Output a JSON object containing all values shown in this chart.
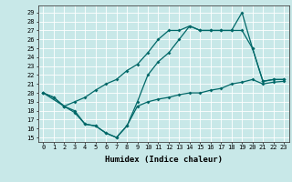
{
  "xlabel": "Humidex (Indice chaleur)",
  "bg_color": "#c8e8e8",
  "line_color": "#006868",
  "xlim": [
    -0.5,
    23.5
  ],
  "ylim": [
    14.5,
    29.8
  ],
  "xticks": [
    0,
    1,
    2,
    3,
    4,
    5,
    6,
    7,
    8,
    9,
    10,
    11,
    12,
    13,
    14,
    15,
    16,
    17,
    18,
    19,
    20,
    21,
    22,
    23
  ],
  "yticks": [
    15,
    16,
    17,
    18,
    19,
    20,
    21,
    22,
    23,
    24,
    25,
    26,
    27,
    28,
    29
  ],
  "line_bottom_x": [
    0,
    1,
    2,
    3,
    4,
    5,
    6,
    7,
    8,
    9,
    10,
    11,
    12,
    13,
    14,
    15,
    16,
    17,
    18,
    19,
    20,
    21,
    22,
    23
  ],
  "line_bottom_y": [
    20.0,
    19.5,
    18.5,
    17.8,
    16.5,
    16.3,
    15.5,
    15.0,
    16.3,
    18.5,
    19.0,
    19.3,
    19.5,
    19.8,
    20.0,
    20.0,
    20.3,
    20.5,
    21.0,
    21.2,
    21.5,
    21.0,
    21.2,
    21.3
  ],
  "line_diag_x": [
    0,
    1,
    2,
    3,
    4,
    5,
    6,
    7,
    8,
    9,
    10,
    11,
    12,
    13,
    14,
    15,
    16,
    17,
    18,
    19,
    20,
    21,
    22,
    23
  ],
  "line_diag_y": [
    20.0,
    19.5,
    18.5,
    19.0,
    19.5,
    20.3,
    21.0,
    21.5,
    22.5,
    23.2,
    24.5,
    26.0,
    27.0,
    27.0,
    27.5,
    27.0,
    27.0,
    27.0,
    27.0,
    29.0,
    25.0,
    21.3,
    21.5,
    21.5
  ],
  "line_top_x": [
    0,
    2,
    3,
    4,
    5,
    6,
    7,
    8,
    9,
    10,
    11,
    12,
    13,
    14,
    15,
    16,
    17,
    18,
    19,
    20,
    21,
    22,
    23
  ],
  "line_top_y": [
    20.0,
    18.5,
    18.0,
    16.5,
    16.3,
    15.5,
    15.0,
    16.3,
    19.0,
    22.0,
    23.5,
    24.5,
    26.0,
    27.5,
    27.0,
    27.0,
    27.0,
    27.0,
    27.0,
    25.0,
    21.3,
    21.5,
    21.5
  ]
}
